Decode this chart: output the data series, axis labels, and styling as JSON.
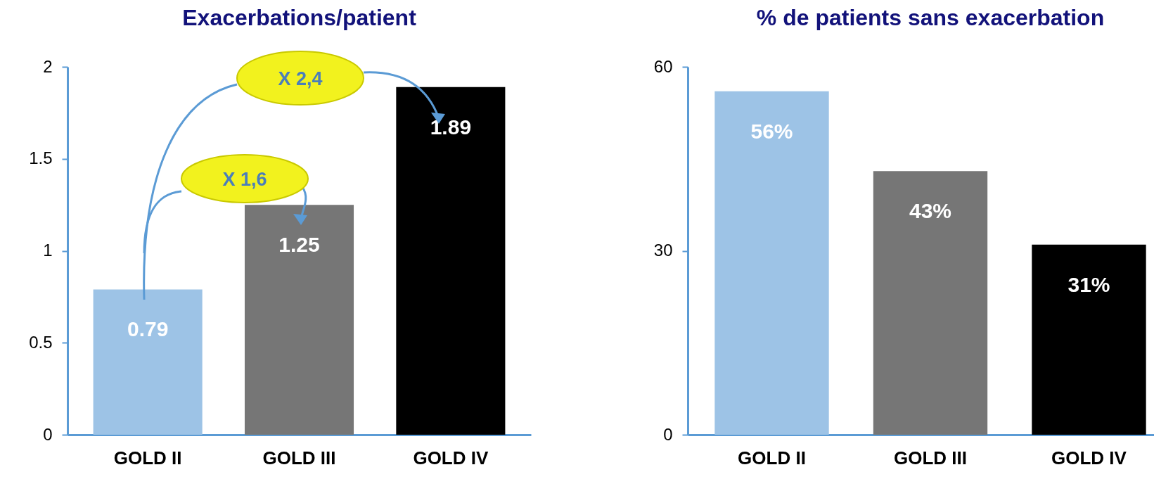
{
  "chart_data": [
    {
      "type": "bar",
      "title": "Exacerbations/patient",
      "categories": [
        "GOLD II",
        "GOLD III",
        "GOLD IV"
      ],
      "values": [
        0.79,
        1.25,
        1.89
      ],
      "colors": [
        "#9dc3e6",
        "#767676",
        "#000000"
      ],
      "ylim": [
        0,
        2
      ],
      "yticks": [
        0,
        0.5,
        1,
        1.5,
        2
      ],
      "data_labels": true,
      "annotations": [
        "X 2,4",
        "X 1,6"
      ]
    },
    {
      "type": "bar",
      "title": "% de patients sans exacerbation",
      "categories": [
        "GOLD II",
        "GOLD III",
        "GOLD IV"
      ],
      "values": [
        56,
        43,
        31
      ],
      "colors": [
        "#9dc3e6",
        "#767676",
        "#000000"
      ],
      "ylim": [
        0,
        60
      ],
      "yticks": [
        0,
        30,
        60
      ],
      "value_labels": [
        "56%",
        "43%",
        "31%"
      ]
    }
  ]
}
